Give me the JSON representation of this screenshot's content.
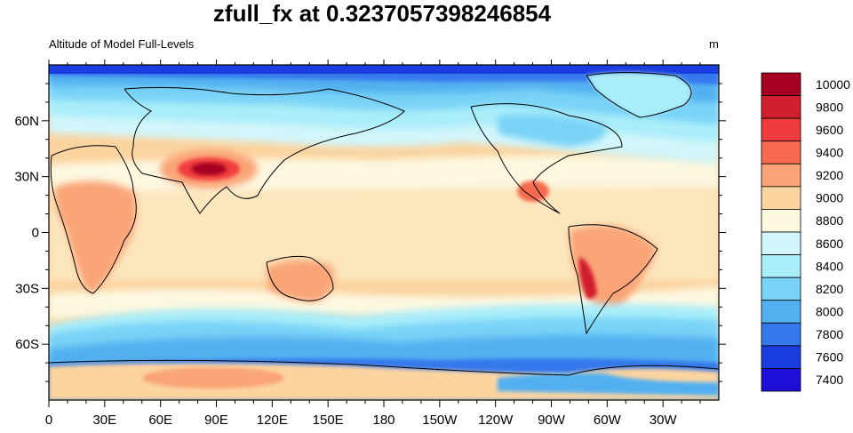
{
  "title": "zfull_fx at 0.3237057398246854",
  "subtitle_left": "Altitude of Model Full-Levels",
  "subtitle_right": "m",
  "map": {
    "lon_labels": [
      "0",
      "30E",
      "60E",
      "90E",
      "120E",
      "150E",
      "180",
      "150W",
      "120W",
      "90W",
      "60W",
      "30W"
    ],
    "lat_labels": [
      "60N",
      "30N",
      "0",
      "30S",
      "60S"
    ],
    "lat_values": [
      60,
      30,
      0,
      -30,
      -60
    ],
    "lon_values": [
      0,
      30,
      60,
      90,
      120,
      150,
      180,
      210,
      240,
      270,
      300,
      330
    ],
    "lon_range": [
      0,
      360
    ],
    "lat_range": [
      -90,
      90
    ]
  },
  "colorbar": {
    "labels": [
      "10000",
      "9800",
      "9600",
      "9400",
      "9200",
      "9000",
      "8800",
      "8600",
      "8400",
      "8200",
      "8000",
      "7800",
      "7600",
      "7400"
    ],
    "colors": [
      "#a50021",
      "#d21f2f",
      "#f03c3c",
      "#f76a4f",
      "#faa477",
      "#fbd4a0",
      "#fdf8e0",
      "#d2f6fb",
      "#aaeefa",
      "#79d3f7",
      "#52b0f0",
      "#3478ec",
      "#1a3de0",
      "#1f0ed7"
    ]
  }
}
